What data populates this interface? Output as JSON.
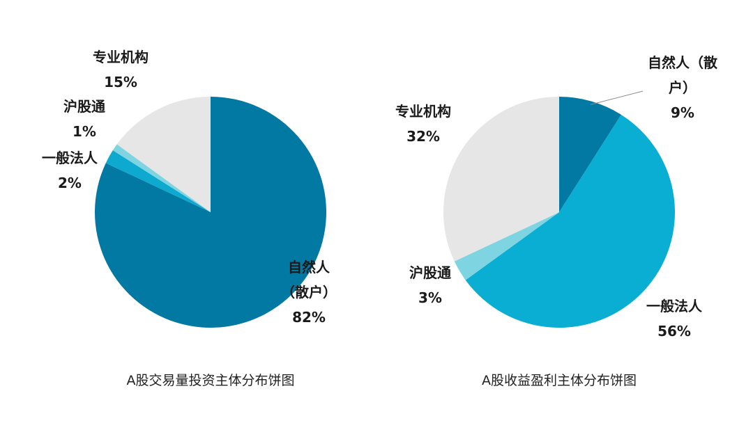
{
  "chart_data": [
    {
      "type": "pie",
      "title": "A股交易量投资主体分布饼图",
      "slices": [
        {
          "name": "自然人（散户）",
          "label_lines": [
            "自然人",
            "（散户）",
            "82%"
          ],
          "value": 82,
          "color": "#0179A3"
        },
        {
          "name": "一般法人",
          "label_lines": [
            "一般法人",
            "2%"
          ],
          "value": 2,
          "color": "#0EA9CF"
        },
        {
          "name": "沪股通",
          "label_lines": [
            "沪股通",
            "1%"
          ],
          "value": 1,
          "color": "#7FD4E2"
        },
        {
          "name": "专业机构",
          "label_lines": [
            "专业机构",
            "15%"
          ],
          "value": 15,
          "color": "#E6E6E6"
        }
      ]
    },
    {
      "type": "pie",
      "title": "A股收益盈利主体分布饼图",
      "slices": [
        {
          "name": "自然人（散户）",
          "label_lines": [
            "自然人（散",
            "户）",
            "9%"
          ],
          "value": 9,
          "color": "#0179A3"
        },
        {
          "name": "一般法人",
          "label_lines": [
            "一般法人",
            "56%"
          ],
          "value": 56,
          "color": "#0AAED3"
        },
        {
          "name": "沪股通",
          "label_lines": [
            "沪股通",
            "3%"
          ],
          "value": 3,
          "color": "#7FD4E2"
        },
        {
          "name": "专业机构",
          "label_lines": [
            "专业机构",
            "32%"
          ],
          "value": 32,
          "color": "#E6E6E6"
        }
      ]
    }
  ]
}
